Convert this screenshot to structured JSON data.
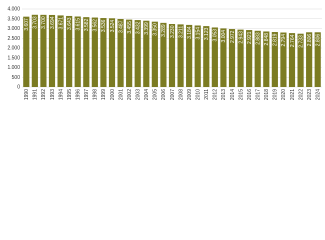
{
  "chart_data": {
    "type": "bar",
    "categories": [
      "1990",
      "1991",
      "1992",
      "1993",
      "1994",
      "1995",
      "1996",
      "1997",
      "1998",
      "1999",
      "2000",
      "2001",
      "2002",
      "2003",
      "2004",
      "2005",
      "2006",
      "2007",
      "2008",
      "2009",
      "2010",
      "2011",
      "2012",
      "2013",
      "2014",
      "2015",
      "2016",
      "2017",
      "2018",
      "2019",
      "2020",
      "2021",
      "2022",
      "2023",
      "2024"
    ],
    "values": [
      3607,
      3703,
      3700,
      3694,
      3671,
      3643,
      3615,
      3582,
      3562,
      3536,
      3524,
      3487,
      3455,
      3432,
      3399,
      3350,
      3289,
      3230,
      3211,
      3184,
      3154,
      3123,
      3053,
      3004,
      2972,
      2943,
      2921,
      2883,
      2848,
      2819,
      2794,
      2764,
      2733,
      2806,
      2806
    ],
    "value_labels": [
      "3.607",
      "3.703",
      "3.700",
      "3.694",
      "3.671",
      "3.643",
      "3.615",
      "3.582",
      "3.562",
      "3.536",
      "3.524",
      "3.487",
      "3.455",
      "3.432",
      "3.399",
      "3.350",
      "3.289",
      "3.230",
      "3.211",
      "3.184",
      "3.154",
      "3.123",
      "3.053",
      "3.004",
      "2.972",
      "2.943",
      "2.921",
      "2.883",
      "2.848",
      "2.819",
      "2.794",
      "2.764",
      "2.733",
      "2.806",
      "2.806"
    ],
    "color": "#7b7b22",
    "ylim": [
      0,
      4000
    ],
    "yticks": [
      {
        "value": 0,
        "label": "0"
      },
      {
        "value": 500,
        "label": "500"
      },
      {
        "value": 1000,
        "label": "1.000"
      },
      {
        "value": 1500,
        "label": "1.500"
      },
      {
        "value": 2000,
        "label": "2.000"
      },
      {
        "value": 2500,
        "label": "2.500"
      },
      {
        "value": 3000,
        "label": "3.000"
      },
      {
        "value": 3500,
        "label": "3.500"
      },
      {
        "value": 4000,
        "label": "4.000"
      }
    ],
    "grid": true
  }
}
